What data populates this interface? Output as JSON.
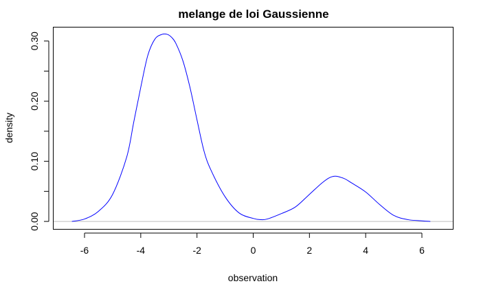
{
  "chart_data": {
    "type": "line",
    "title": "melange de loi Gaussienne",
    "xlabel": "observation",
    "ylabel": "density",
    "xlim": [
      -7.1,
      7.1
    ],
    "ylim": [
      -0.0125,
      0.3225
    ],
    "x_ticks": [
      -6,
      -4,
      -2,
      0,
      2,
      4,
      6
    ],
    "x_tick_labels": [
      "-6",
      "-4",
      "-2",
      "0",
      "2",
      "4",
      "6"
    ],
    "y_ticks": [
      0.0,
      0.1,
      0.2,
      0.3
    ],
    "y_tick_labels": [
      "0.00",
      "0.10",
      "0.20",
      "0.30"
    ],
    "grid": false,
    "baseline": 0,
    "colors": {
      "line": "#0000ff",
      "baseline": "#bebebe",
      "axes": "#000000"
    },
    "series": [
      {
        "x": [
          -6.45,
          -6.0,
          -5.5,
          -5.0,
          -4.5,
          -4.25,
          -4.0,
          -3.75,
          -3.5,
          -3.25,
          -3.05,
          -2.9,
          -2.75,
          -2.5,
          -2.25,
          -2.0,
          -1.75,
          -1.5,
          -1.0,
          -0.5,
          0.0,
          0.25,
          0.5,
          1.0,
          1.5,
          2.0,
          2.5,
          2.85,
          3.2,
          3.5,
          4.0,
          4.5,
          5.0,
          5.5,
          6.0,
          6.3
        ],
        "y": [
          0.0,
          0.004,
          0.017,
          0.045,
          0.107,
          0.165,
          0.223,
          0.276,
          0.303,
          0.311,
          0.311,
          0.306,
          0.296,
          0.267,
          0.223,
          0.169,
          0.117,
          0.085,
          0.041,
          0.014,
          0.005,
          0.003,
          0.004,
          0.013,
          0.024,
          0.045,
          0.066,
          0.075,
          0.072,
          0.064,
          0.049,
          0.028,
          0.01,
          0.003,
          0.001,
          0.0
        ]
      }
    ]
  }
}
